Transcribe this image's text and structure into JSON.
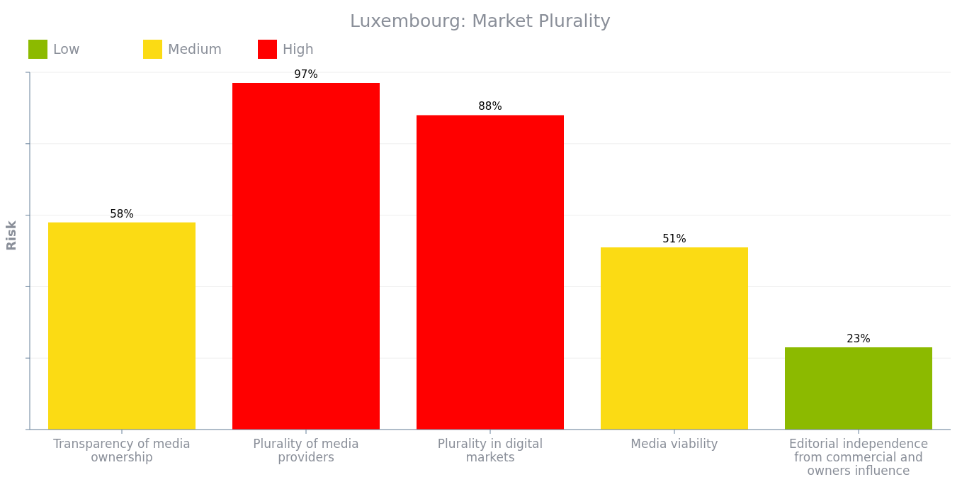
{
  "chart_data": {
    "type": "bar",
    "title": "Luxembourg: Market Plurality",
    "ylabel": "Risk",
    "categories": [
      "Transparency of media ownership",
      "Plurality of media providers",
      "Plurality in digital markets",
      "Media viability",
      "Editorial independence from commercial and owners influence"
    ],
    "series": [
      {
        "name": "Low",
        "color": "#8cba00",
        "values": [
          null,
          null,
          null,
          null,
          23
        ],
        "value_labels": [
          null,
          null,
          null,
          null,
          "23%"
        ]
      },
      {
        "name": "Medium",
        "color": "#fbdb14",
        "values": [
          58,
          null,
          null,
          51,
          null
        ],
        "value_labels": [
          "58%",
          null,
          null,
          "51%",
          null
        ]
      },
      {
        "name": "High",
        "color": "#ff0000",
        "values": [
          null,
          97,
          88,
          null,
          null
        ],
        "value_labels": [
          null,
          "97%",
          "88%",
          null,
          null
        ]
      }
    ],
    "stacked": true,
    "ylim": [
      0,
      100
    ],
    "yticks": [
      {
        "value": 0,
        "label": null
      },
      {
        "value": 20,
        "label": null
      },
      {
        "value": 40,
        "label": null
      },
      {
        "value": 60,
        "label": null
      },
      {
        "value": 80,
        "label": null
      },
      {
        "value": 100,
        "label": null
      }
    ],
    "tick_labels": "x",
    "grid": "y",
    "legend": "top left"
  }
}
